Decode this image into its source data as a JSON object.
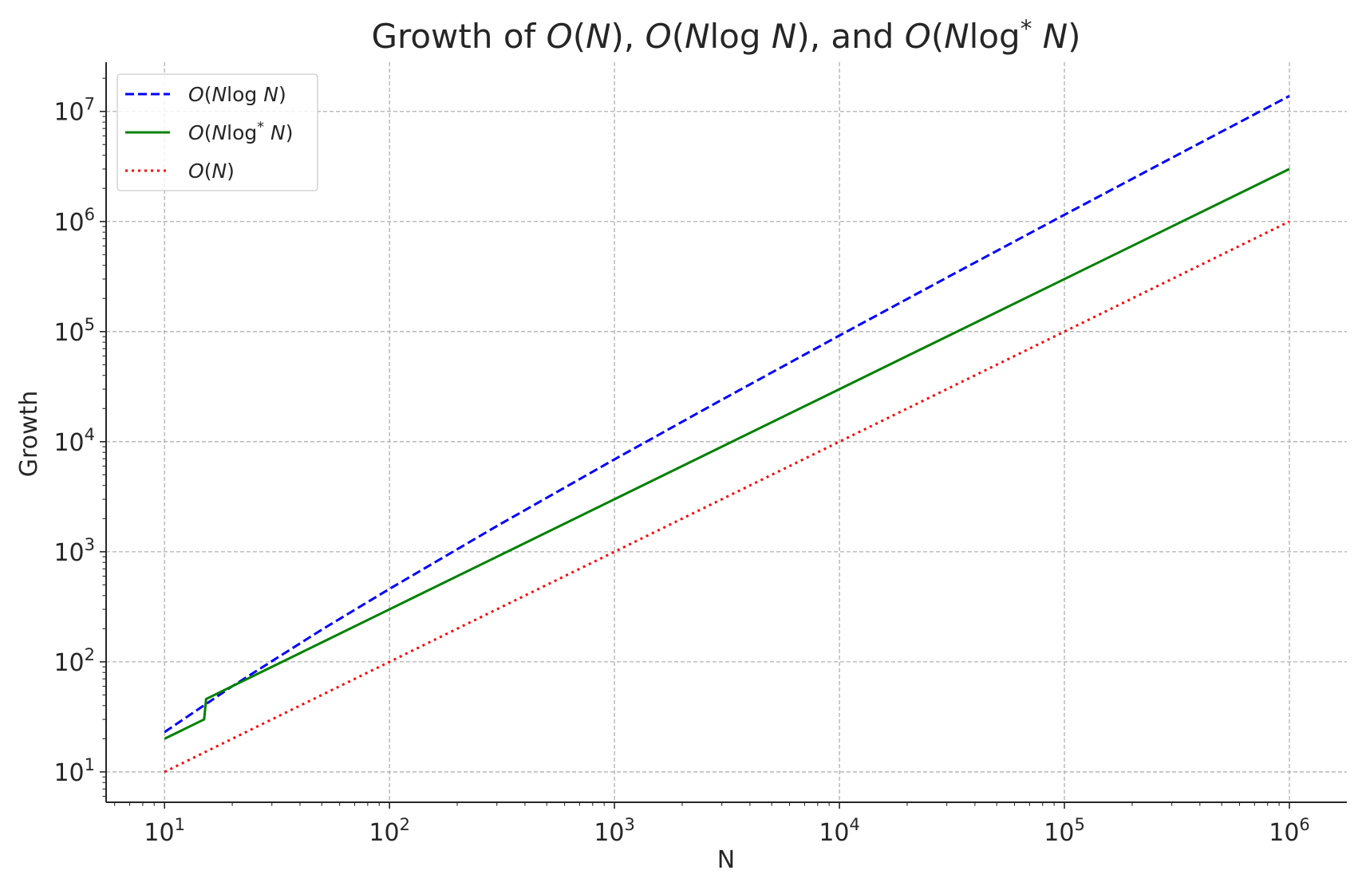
{
  "chart_data": {
    "type": "line",
    "title": "Growth of O(N), O(N log N), and O(N log* N)",
    "xlabel": "N",
    "ylabel": "Growth",
    "xscale": "log",
    "yscale": "log",
    "xlim": [
      5.5,
      1800000
    ],
    "ylim": [
      5.3,
      28000000
    ],
    "grid": true,
    "legend_position": "top-left",
    "x_ticks": [
      {
        "value": 10,
        "base": "10",
        "exp": "1"
      },
      {
        "value": 100,
        "base": "10",
        "exp": "2"
      },
      {
        "value": 1000,
        "base": "10",
        "exp": "3"
      },
      {
        "value": 10000,
        "base": "10",
        "exp": "4"
      },
      {
        "value": 100000,
        "base": "10",
        "exp": "5"
      },
      {
        "value": 1000000,
        "base": "10",
        "exp": "6"
      }
    ],
    "y_ticks": [
      {
        "value": 10,
        "base": "10",
        "exp": "1"
      },
      {
        "value": 100,
        "base": "10",
        "exp": "2"
      },
      {
        "value": 1000,
        "base": "10",
        "exp": "3"
      },
      {
        "value": 10000,
        "base": "10",
        "exp": "4"
      },
      {
        "value": 100000,
        "base": "10",
        "exp": "5"
      },
      {
        "value": 1000000,
        "base": "10",
        "exp": "6"
      },
      {
        "value": 10000000,
        "base": "10",
        "exp": "7"
      }
    ],
    "series": [
      {
        "name": "O(N log N)",
        "color": "#0000ff",
        "style": "dashed",
        "x": [
          10,
          20,
          50,
          100,
          300,
          1000,
          3000,
          10000,
          30000,
          100000,
          300000,
          1000000
        ],
        "y": [
          23,
          60,
          196,
          460,
          1711,
          6908,
          24019,
          92103,
          309268,
          1151293,
          3783490,
          13815511
        ]
      },
      {
        "name": "O(N log* N)",
        "color": "#008000",
        "style": "solid",
        "x": [
          10,
          15,
          15.3,
          20,
          50,
          100,
          300,
          1000,
          3000,
          10000,
          30000,
          100000,
          300000,
          1000000
        ],
        "y": [
          20,
          30,
          45.9,
          60,
          150,
          300,
          900,
          3000,
          9000,
          30000,
          90000,
          300000,
          900000,
          3000000
        ]
      },
      {
        "name": "O(N)",
        "color": "#ff0000",
        "style": "dotted",
        "x": [
          10,
          100,
          1000,
          10000,
          100000,
          1000000
        ],
        "y": [
          10,
          100,
          1000,
          10000,
          100000,
          1000000
        ]
      }
    ]
  }
}
